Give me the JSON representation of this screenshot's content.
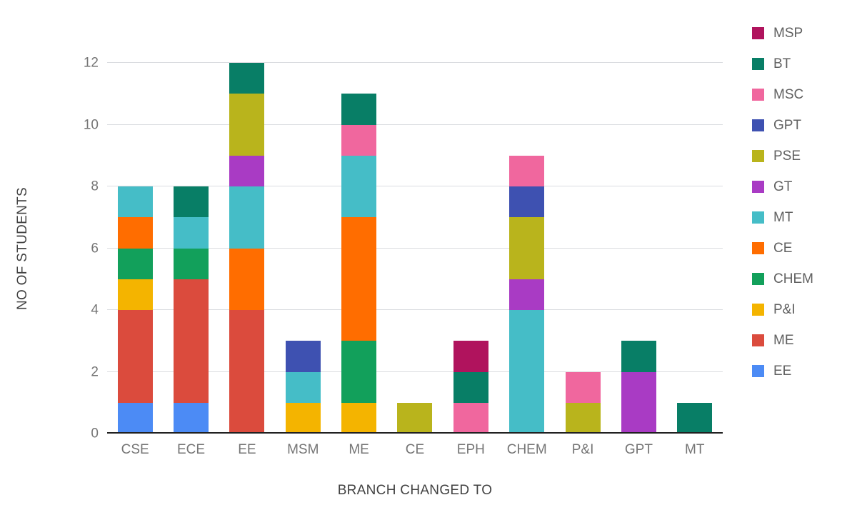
{
  "chart_data": {
    "type": "bar",
    "stacked": true,
    "title": "",
    "xlabel": "BRANCH CHANGED TO",
    "ylabel": "NO OF STUDENTS",
    "ylim": [
      0,
      12
    ],
    "yticks": [
      0,
      2,
      4,
      6,
      8,
      10,
      12
    ],
    "grid": true,
    "legend_position": "right",
    "categories": [
      "CSE",
      "ECE",
      "EE",
      "MSM",
      "ME",
      "CE",
      "EPH",
      "CHEM",
      "P&I",
      "GPT",
      "MT"
    ],
    "series": [
      {
        "name": "MSP",
        "color": "#B0135D",
        "values": [
          0,
          0,
          0,
          0,
          0,
          0,
          1,
          0,
          0,
          0,
          0
        ]
      },
      {
        "name": "BT",
        "color": "#087E66",
        "values": [
          0,
          1,
          1,
          0,
          1,
          0,
          1,
          0,
          0,
          1,
          1
        ]
      },
      {
        "name": "MSC",
        "color": "#F0679E",
        "values": [
          0,
          0,
          0,
          0,
          1,
          0,
          1,
          1,
          1,
          0,
          0
        ]
      },
      {
        "name": "GPT",
        "color": "#3E51B1",
        "values": [
          0,
          0,
          0,
          1,
          0,
          0,
          0,
          1,
          0,
          0,
          0
        ]
      },
      {
        "name": "PSE",
        "color": "#B9B41C",
        "values": [
          0,
          0,
          2,
          0,
          0,
          1,
          0,
          2,
          1,
          0,
          0
        ]
      },
      {
        "name": "GT",
        "color": "#A93BC4",
        "values": [
          0,
          0,
          1,
          0,
          0,
          0,
          0,
          1,
          0,
          2,
          0
        ]
      },
      {
        "name": "MT",
        "color": "#45BDC7",
        "values": [
          1,
          1,
          2,
          1,
          2,
          0,
          0,
          4,
          0,
          0,
          0
        ]
      },
      {
        "name": "CE",
        "color": "#FF6D00",
        "values": [
          1,
          0,
          2,
          0,
          4,
          0,
          0,
          0,
          0,
          0,
          0
        ]
      },
      {
        "name": "CHEM",
        "color": "#12A05B",
        "values": [
          1,
          1,
          0,
          0,
          2,
          0,
          0,
          0,
          0,
          0,
          0
        ]
      },
      {
        "name": "P&I",
        "color": "#F4B400",
        "values": [
          1,
          0,
          0,
          1,
          1,
          0,
          0,
          0,
          0,
          0,
          0
        ]
      },
      {
        "name": "ME",
        "color": "#DB4B3D",
        "values": [
          3,
          4,
          4,
          0,
          0,
          0,
          0,
          0,
          0,
          0,
          0
        ]
      },
      {
        "name": "EE",
        "color": "#4C8BF5",
        "values": [
          1,
          1,
          0,
          0,
          0,
          0,
          0,
          0,
          0,
          0,
          0
        ]
      }
    ],
    "stack_order_note": "bars stack bottom-to-top in reverse legend order (EE at bottom, MSP at top)",
    "bar_totals": {
      "CSE": 8,
      "ECE": 8,
      "EE": 12,
      "MSM": 3,
      "ME": 11,
      "CE": 1,
      "EPH": 3,
      "CHEM": 9,
      "P&I": 2,
      "GPT": 3,
      "MT": 1
    }
  }
}
